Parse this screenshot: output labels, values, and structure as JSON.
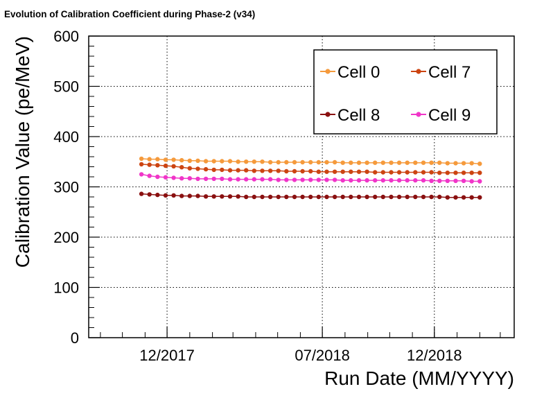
{
  "chart_data": {
    "type": "line",
    "title": "Evolution of Calibration Coefficient during Phase-2 (v34)",
    "xlabel": "Run Date (MM/YYYY)",
    "ylabel": "Calibration Value (pe/MeV)",
    "ylim": [
      0,
      600
    ],
    "yticks": [
      0,
      100,
      200,
      300,
      400,
      500,
      600
    ],
    "xlim": [
      "2017-08-16",
      "2019-03-20"
    ],
    "xticks": [
      {
        "date": "2017-12-01",
        "label": "12/2017"
      },
      {
        "date": "2018-07-01",
        "label": "07/2018"
      },
      {
        "date": "2018-12-01",
        "label": "12/2018"
      }
    ],
    "grid": true,
    "legend_position": "top-right",
    "x": [
      "2017-10-27",
      "2017-11-07",
      "2017-11-18",
      "2017-11-29",
      "2017-12-10",
      "2017-12-21",
      "2018-01-01",
      "2018-01-12",
      "2018-01-23",
      "2018-02-03",
      "2018-02-14",
      "2018-02-25",
      "2018-03-08",
      "2018-03-19",
      "2018-03-30",
      "2018-04-10",
      "2018-04-21",
      "2018-05-02",
      "2018-05-13",
      "2018-05-24",
      "2018-06-04",
      "2018-06-15",
      "2018-06-26",
      "2018-07-07",
      "2018-07-18",
      "2018-07-29",
      "2018-08-09",
      "2018-08-20",
      "2018-08-31",
      "2018-09-11",
      "2018-09-22",
      "2018-10-03",
      "2018-10-14",
      "2018-10-25",
      "2018-11-05",
      "2018-11-16",
      "2018-11-27",
      "2018-12-08",
      "2018-12-19",
      "2018-12-30",
      "2019-01-10",
      "2019-01-21",
      "2019-02-01"
    ],
    "series": [
      {
        "name": "Cell 0",
        "color": "#f59a3c",
        "values": [
          356,
          355,
          355,
          354,
          354,
          353,
          352,
          352,
          351,
          351,
          351,
          351,
          350,
          350,
          350,
          350,
          349,
          349,
          349,
          349,
          349,
          349,
          349,
          349,
          349,
          348,
          348,
          348,
          348,
          348,
          348,
          348,
          348,
          348,
          348,
          348,
          348,
          348,
          347,
          347,
          347,
          347,
          346
        ]
      },
      {
        "name": "Cell 7",
        "color": "#cc4411",
        "values": [
          345,
          344,
          343,
          342,
          341,
          339,
          337,
          336,
          335,
          334,
          334,
          333,
          333,
          333,
          332,
          332,
          332,
          332,
          331,
          331,
          331,
          331,
          330,
          330,
          330,
          330,
          330,
          330,
          330,
          329,
          329,
          329,
          329,
          329,
          329,
          329,
          329,
          328,
          328,
          328,
          328,
          328,
          328
        ]
      },
      {
        "name": "Cell 8",
        "color": "#8a1010",
        "values": [
          286,
          285,
          284,
          283,
          283,
          282,
          282,
          282,
          281,
          281,
          281,
          281,
          281,
          280,
          280,
          280,
          280,
          280,
          280,
          280,
          280,
          280,
          280,
          280,
          280,
          280,
          280,
          280,
          280,
          280,
          280,
          280,
          280,
          280,
          280,
          280,
          280,
          280,
          279,
          279,
          279,
          279,
          279
        ]
      },
      {
        "name": "Cell 9",
        "color": "#f035c8",
        "values": [
          325,
          322,
          320,
          319,
          318,
          317,
          317,
          316,
          316,
          316,
          316,
          315,
          315,
          315,
          315,
          315,
          315,
          314,
          314,
          314,
          314,
          314,
          314,
          314,
          314,
          313,
          313,
          313,
          313,
          313,
          313,
          313,
          313,
          313,
          313,
          313,
          312,
          312,
          312,
          312,
          312,
          311,
          311
        ]
      }
    ]
  }
}
